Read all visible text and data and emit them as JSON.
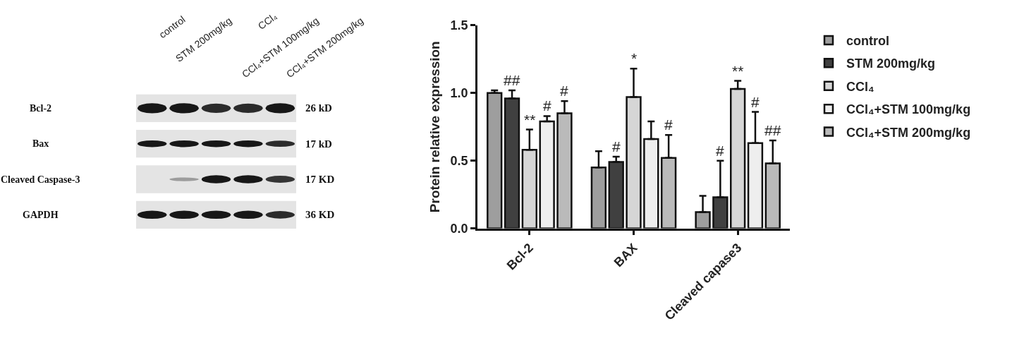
{
  "chart_data": [
    {
      "type": "other",
      "categories": [
        "control",
        "STM 200mg/kg",
        "CCl₄",
        "CCl₄+STM 100mg/kg",
        "CCl₄+STM 200mg/kg"
      ],
      "y_categories": [
        "Bcl-2",
        "Bax",
        "Cleaved Caspase-3",
        "GAPDH"
      ],
      "y2_categories": [
        "26 kD",
        "17 kD",
        "17 KD",
        "36 KD"
      ]
    },
    {
      "type": "bar",
      "ylabel": "Protein relative expression",
      "categories": [
        "Bcl-2",
        "BAX",
        "Cleaved capase3"
      ],
      "series": [
        {
          "name": "control",
          "color": "#9e9e9e",
          "values": [
            1.0,
            0.45,
            0.12
          ],
          "errors": [
            [
              1.0,
              1.02
            ],
            [
              0.45,
              0.57
            ],
            [
              0.12,
              0.24
            ]
          ]
        },
        {
          "name": "STM 200mg/kg",
          "color": "#404040",
          "values": [
            0.96,
            0.49,
            0.23
          ],
          "errors": [
            [
              0.96,
              1.02
            ],
            [
              0.49,
              0.53
            ],
            [
              0.23,
              0.5
            ]
          ],
          "value_labels": [
            "##",
            "#",
            "#"
          ]
        },
        {
          "name": "CCl₄",
          "color": "#d6d6d6",
          "values": [
            0.58,
            0.97,
            1.03
          ],
          "errors": [
            [
              0.58,
              0.73
            ],
            [
              0.97,
              1.18
            ],
            [
              1.03,
              1.09
            ]
          ],
          "value_labels": [
            "**",
            "*",
            "**"
          ]
        },
        {
          "name": "CCl₄+STM 100mg/kg",
          "color": "#eeeeee",
          "values": [
            0.79,
            0.66,
            0.63
          ],
          "errors": [
            [
              0.79,
              0.83
            ],
            [
              0.66,
              0.79
            ],
            [
              0.63,
              0.86
            ]
          ],
          "value_labels": [
            "#",
            null,
            "#"
          ]
        },
        {
          "name": "CCl₄+STM 200mg/kg",
          "color": "#bababa",
          "values": [
            0.85,
            0.52,
            0.48
          ],
          "errors": [
            [
              0.85,
              0.94
            ],
            [
              0.52,
              0.69
            ],
            [
              0.48,
              0.65
            ]
          ],
          "value_labels": [
            "#",
            "#",
            "##"
          ]
        }
      ],
      "ylim": [
        0,
        1.5
      ],
      "yticks": [
        {
          "value": 0,
          "label": "0.0"
        },
        {
          "value": 0.5,
          "label": "0.5"
        },
        {
          "value": 1.0,
          "label": "1.0"
        },
        {
          "value": 1.5,
          "label": "1.5"
        }
      ],
      "legend": "top right"
    }
  ]
}
